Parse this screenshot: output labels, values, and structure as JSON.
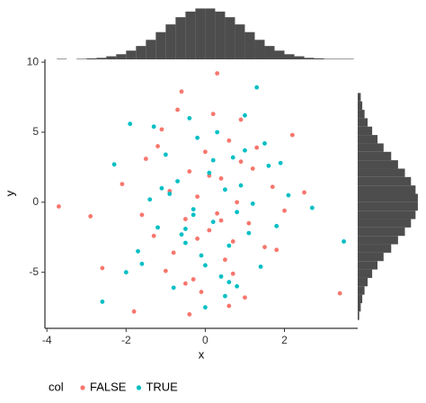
{
  "chart_data": {
    "type": "scatter",
    "x_label": "x",
    "y_label": "y",
    "legend_title": "col",
    "xlim": [
      -4.05,
      3.85
    ],
    "ylim": [
      -9,
      10.2
    ],
    "xticks": [
      -4,
      -2,
      0,
      2
    ],
    "yticks": [
      -5,
      0,
      5,
      10
    ],
    "series": [
      {
        "name": "FALSE",
        "color": "#F8766D",
        "x": [
          -3.7,
          -2.6,
          -2.1,
          -1.8,
          -1.5,
          -1.3,
          -1.1,
          -0.9,
          -0.8,
          -0.6,
          -0.5,
          -0.4,
          -0.3,
          -0.2,
          -0.1,
          0.0,
          0.1,
          0.2,
          0.3,
          0.4,
          0.5,
          0.6,
          0.7,
          0.8,
          0.9,
          1.0,
          1.1,
          1.3,
          1.5,
          1.7,
          2.0,
          2.2,
          3.4,
          -1.0,
          -0.7,
          0.3,
          0.6,
          -0.2,
          1.2,
          -1.6,
          0.9,
          -0.5,
          0.1,
          2.5,
          -2.9,
          1.8,
          -0.4,
          0.4,
          -1.2,
          0.7
        ],
        "y": [
          -0.3,
          -4.7,
          1.3,
          -7.8,
          3.1,
          -2.4,
          5.2,
          0.8,
          -3.6,
          7.9,
          -1.2,
          2.2,
          -5.5,
          0.4,
          -6.4,
          3.6,
          -2.0,
          6.3,
          -0.8,
          1.7,
          -4.1,
          4.4,
          -2.8,
          0.0,
          2.9,
          -6.8,
          -1.5,
          3.9,
          -3.2,
          1.1,
          -0.6,
          4.8,
          -6.5,
          -4.9,
          6.6,
          9.2,
          -7.4,
          -2.6,
          2.4,
          -0.9,
          5.9,
          -5.8,
          1.9,
          0.7,
          -1.0,
          -3.4,
          -8.0,
          -1.3,
          4.0,
          -5.1
        ]
      },
      {
        "name": "TRUE",
        "color": "#00BFC4",
        "x": [
          -2.6,
          -2.3,
          -1.9,
          -1.6,
          -1.4,
          -1.2,
          -1.0,
          -0.8,
          -0.7,
          -0.5,
          -0.4,
          -0.3,
          -0.2,
          -0.1,
          0.0,
          0.1,
          0.2,
          0.3,
          0.4,
          0.5,
          0.6,
          0.7,
          0.8,
          0.9,
          1.0,
          1.1,
          1.2,
          1.3,
          1.4,
          1.6,
          1.8,
          2.1,
          2.7,
          3.5,
          -2.0,
          -1.1,
          -0.6,
          0.2,
          0.5,
          1.5,
          -0.9,
          0.0,
          0.8,
          -1.7,
          1.9,
          -0.3,
          0.6,
          -1.3,
          1.0,
          -0.5
        ],
        "y": [
          -7.1,
          2.7,
          5.6,
          -4.4,
          0.2,
          -1.8,
          3.4,
          -6.1,
          1.5,
          -2.9,
          6.0,
          -0.5,
          4.6,
          -3.8,
          -7.5,
          2.1,
          -1.4,
          5.0,
          -5.3,
          0.9,
          -3.1,
          3.2,
          -6.0,
          1.2,
          6.2,
          -2.2,
          -0.1,
          8.2,
          -4.6,
          2.6,
          -1.7,
          0.5,
          -0.4,
          -2.8,
          -5.0,
          1.0,
          -2.3,
          3.0,
          -6.7,
          4.2,
          0.6,
          -4.5,
          -0.7,
          -3.5,
          2.8,
          -0.9,
          -5.7,
          5.4,
          3.7,
          -1.9
        ]
      }
    ],
    "marginal_x": {
      "type": "histogram",
      "color": "#4d4d4d",
      "countlim": [
        0,
        105
      ],
      "bins": [
        -4,
        -3.75,
        -3.5,
        -3.25,
        -3,
        -2.75,
        -2.5,
        -2.25,
        -2,
        -1.75,
        -1.5,
        -1.25,
        -1,
        -0.75,
        -0.5,
        -0.25,
        0,
        0.25,
        0.5,
        0.75,
        1,
        1.25,
        1.5,
        1.75,
        2,
        2.25,
        2.5,
        2.75,
        3,
        3.25,
        3.5,
        3.75,
        4
      ],
      "counts": [
        0,
        1,
        0,
        1,
        2,
        3,
        6,
        10,
        17,
        26,
        38,
        53,
        68,
        82,
        93,
        99,
        99,
        93,
        82,
        68,
        53,
        38,
        26,
        17,
        10,
        6,
        3,
        2,
        1,
        1,
        1,
        0
      ]
    },
    "marginal_y": {
      "type": "histogram",
      "color": "#4d4d4d",
      "countlim": [
        0,
        85
      ],
      "bins": [
        -8.4,
        -7.8,
        -7.2,
        -6.6,
        -6.0,
        -5.4,
        -4.8,
        -4.2,
        -3.6,
        -3.0,
        -2.4,
        -1.8,
        -1.2,
        -0.6,
        0,
        0.6,
        1.2,
        1.8,
        2.4,
        3.0,
        3.6,
        4.2,
        4.8,
        5.4,
        6.0,
        6.6,
        7.2,
        7.8
      ],
      "counts": [
        2,
        4,
        6,
        9,
        13,
        19,
        26,
        34,
        44,
        53,
        62,
        70,
        76,
        79,
        79,
        76,
        70,
        62,
        53,
        44,
        34,
        26,
        19,
        13,
        9,
        6,
        4
      ]
    }
  }
}
